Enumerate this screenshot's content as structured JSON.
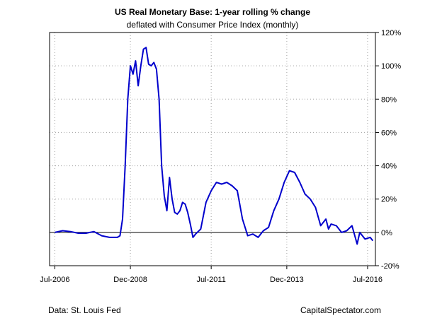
{
  "title": "US Real Monetary Base: 1-year rolling % change",
  "subtitle": "deflated with Consumer Price Index (monthly)",
  "source": "Data: St. Louis Fed",
  "credit": "CapitalSpectator.com",
  "colors": {
    "line": "#0000cc",
    "zero_line": "#000000",
    "grid": "#a0a0a0"
  },
  "chart_data": {
    "type": "line",
    "grid": true,
    "y_axis_position": "right",
    "ylim": [
      -20,
      120
    ],
    "yticks": [
      -20,
      0,
      20,
      40,
      60,
      80,
      100,
      120
    ],
    "ytick_labels": [
      "-20%",
      "0%",
      "20%",
      "40%",
      "60%",
      "80%",
      "100%",
      "120%"
    ],
    "xlim": [
      "2006-05",
      "2016-10"
    ],
    "xticks": [
      "2006-07",
      "2008-12",
      "2011-07",
      "2013-12",
      "2016-07"
    ],
    "xtick_labels": [
      "Jul-2006",
      "Dec-2008",
      "Jul-2011",
      "Dec-2013",
      "Jul-2016"
    ],
    "reference_line_y": 0,
    "series": [
      {
        "points": [
          [
            "2006-07",
            0
          ],
          [
            "2006-10",
            1
          ],
          [
            "2007-01",
            0.5
          ],
          [
            "2007-04",
            -0.5
          ],
          [
            "2007-07",
            -0.5
          ],
          [
            "2007-10",
            0.5
          ],
          [
            "2008-01",
            -2
          ],
          [
            "2008-04",
            -3
          ],
          [
            "2008-07",
            -3
          ],
          [
            "2008-08",
            -2
          ],
          [
            "2008-09",
            8
          ],
          [
            "2008-10",
            40
          ],
          [
            "2008-11",
            80
          ],
          [
            "2008-12",
            100
          ],
          [
            "2009-01",
            95
          ],
          [
            "2009-02",
            103
          ],
          [
            "2009-03",
            88
          ],
          [
            "2009-04",
            100
          ],
          [
            "2009-05",
            110
          ],
          [
            "2009-06",
            111
          ],
          [
            "2009-07",
            101
          ],
          [
            "2009-08",
            100
          ],
          [
            "2009-09",
            102
          ],
          [
            "2009-10",
            98
          ],
          [
            "2009-11",
            80
          ],
          [
            "2009-12",
            40
          ],
          [
            "2010-01",
            22
          ],
          [
            "2010-02",
            13
          ],
          [
            "2010-03",
            33
          ],
          [
            "2010-04",
            20
          ],
          [
            "2010-05",
            12
          ],
          [
            "2010-06",
            11
          ],
          [
            "2010-07",
            13
          ],
          [
            "2010-08",
            18
          ],
          [
            "2010-09",
            17
          ],
          [
            "2010-10",
            12
          ],
          [
            "2010-11",
            5
          ],
          [
            "2010-12",
            -3
          ],
          [
            "2011-01",
            -1
          ],
          [
            "2011-03",
            2
          ],
          [
            "2011-05",
            18
          ],
          [
            "2011-07",
            25
          ],
          [
            "2011-09",
            30
          ],
          [
            "2011-11",
            29
          ],
          [
            "2012-01",
            30
          ],
          [
            "2012-03",
            28
          ],
          [
            "2012-05",
            25
          ],
          [
            "2012-07",
            8
          ],
          [
            "2012-09",
            -2
          ],
          [
            "2012-11",
            -1
          ],
          [
            "2013-01",
            -3
          ],
          [
            "2013-03",
            1
          ],
          [
            "2013-05",
            3
          ],
          [
            "2013-07",
            13
          ],
          [
            "2013-09",
            20
          ],
          [
            "2013-11",
            30
          ],
          [
            "2014-01",
            37
          ],
          [
            "2014-03",
            36
          ],
          [
            "2014-05",
            30
          ],
          [
            "2014-07",
            23
          ],
          [
            "2014-09",
            20
          ],
          [
            "2014-11",
            15
          ],
          [
            "2015-01",
            4
          ],
          [
            "2015-03",
            8
          ],
          [
            "2015-04",
            2
          ],
          [
            "2015-05",
            5
          ],
          [
            "2015-07",
            4
          ],
          [
            "2015-09",
            0
          ],
          [
            "2015-11",
            1
          ],
          [
            "2016-01",
            4
          ],
          [
            "2016-03",
            -7
          ],
          [
            "2016-04",
            0
          ],
          [
            "2016-06",
            -4
          ],
          [
            "2016-08",
            -3
          ],
          [
            "2016-09",
            -5
          ]
        ]
      }
    ]
  }
}
